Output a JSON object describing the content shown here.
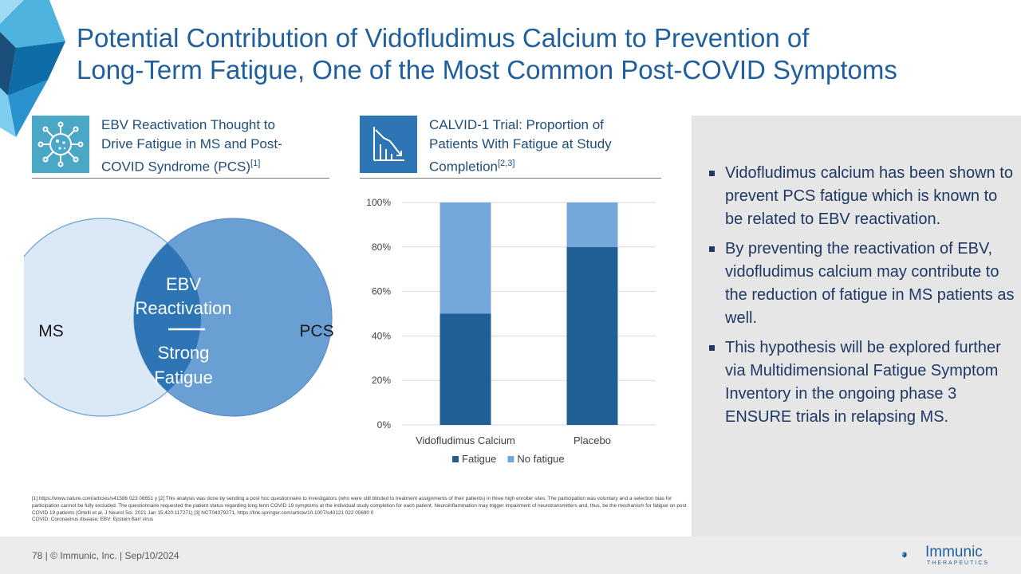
{
  "slide": {
    "title_line1": "Potential Contribution of Vidofludimus Calcium to Prevention of",
    "title_line2": "Long-Term Fatigue, One of the Most Common Post-COVID Symptoms"
  },
  "left_section": {
    "heading_line1": "EBV Reactivation Thought to",
    "heading_line2": "Drive Fatigue in MS and Post-",
    "heading_line3": "COVID Syndrome (PCS)",
    "heading_ref": "[1]",
    "icon": "virus-icon"
  },
  "venn": {
    "left_label": "MS",
    "right_label": "PCS",
    "center_line1": "EBV",
    "center_line2": "Reactivation",
    "center_line3": "Strong",
    "center_line4": "Fatigue",
    "colors": {
      "left": "#dbe9f6",
      "right": "#6a9fd4",
      "center": "#2e75b6"
    }
  },
  "middle_section": {
    "heading_line1": "CALVID-1 Trial: Proportion of",
    "heading_line2": "Patients With Fatigue at Study",
    "heading_line3": "Completion",
    "heading_ref": "[2,3]",
    "icon": "declining-chart-icon"
  },
  "chart_data": {
    "type": "bar",
    "stacked": true,
    "categories": [
      "Vidofludimus Calcium",
      "Placebo"
    ],
    "series": [
      {
        "name": "Fatigue",
        "values": [
          50,
          80
        ],
        "color": "#1f5f96"
      },
      {
        "name": "No fatigue",
        "values": [
          50,
          20
        ],
        "color": "#74a8da"
      }
    ],
    "ylim": [
      0,
      100
    ],
    "yticks": [
      "0%",
      "20%",
      "40%",
      "60%",
      "80%",
      "100%"
    ],
    "grid": true,
    "legend": "bottom"
  },
  "panel": {
    "bullets": [
      "Vidofludimus calcium has been shown to prevent PCS fatigue which is known to be related to EBV reactivation.",
      "By preventing the reactivation of EBV, vidofludimus calcium may contribute to the reduction of fatigue in MS patients as well.",
      "This hypothesis will be explored further via Multidimensional Fatigue Symptom Inventory in the ongoing phase 3 ENSURE trials in relapsing MS."
    ]
  },
  "footnotes": {
    "text": "[1] https://www.nature.com/articles/s41586 023 06651 y  [2] This analysis was done by sending a post hoc questionnaire to investigators (who were still blinded to treatment assignments of their patients) in three high enroller sites. The participation was voluntary and a selection bias for participation cannot be fully excluded. The questionnaire requested the patient status regarding long term COVID 19 symptoms at the individual study completion for each patient. Neuroinflammation may trigger impairment of neurotransmitters and, thus, be the mechanism for fatigue on post COVID 19 patients (Ortelli et al. J Neurol Sci. 2021 Jan 15;420:117271) [3] NCT04379271, https://link.springer.com/article/10.1007/s40121 022 00690 0",
    "abbreviations": "COVID: Coronavirus disease; EBV: Epstein Barr virus"
  },
  "footer": {
    "text": "78  |  © Immunic, Inc.  | Sep/10/2024",
    "logo_name": "Immunic",
    "logo_sub": "THERAPEUTICS"
  }
}
